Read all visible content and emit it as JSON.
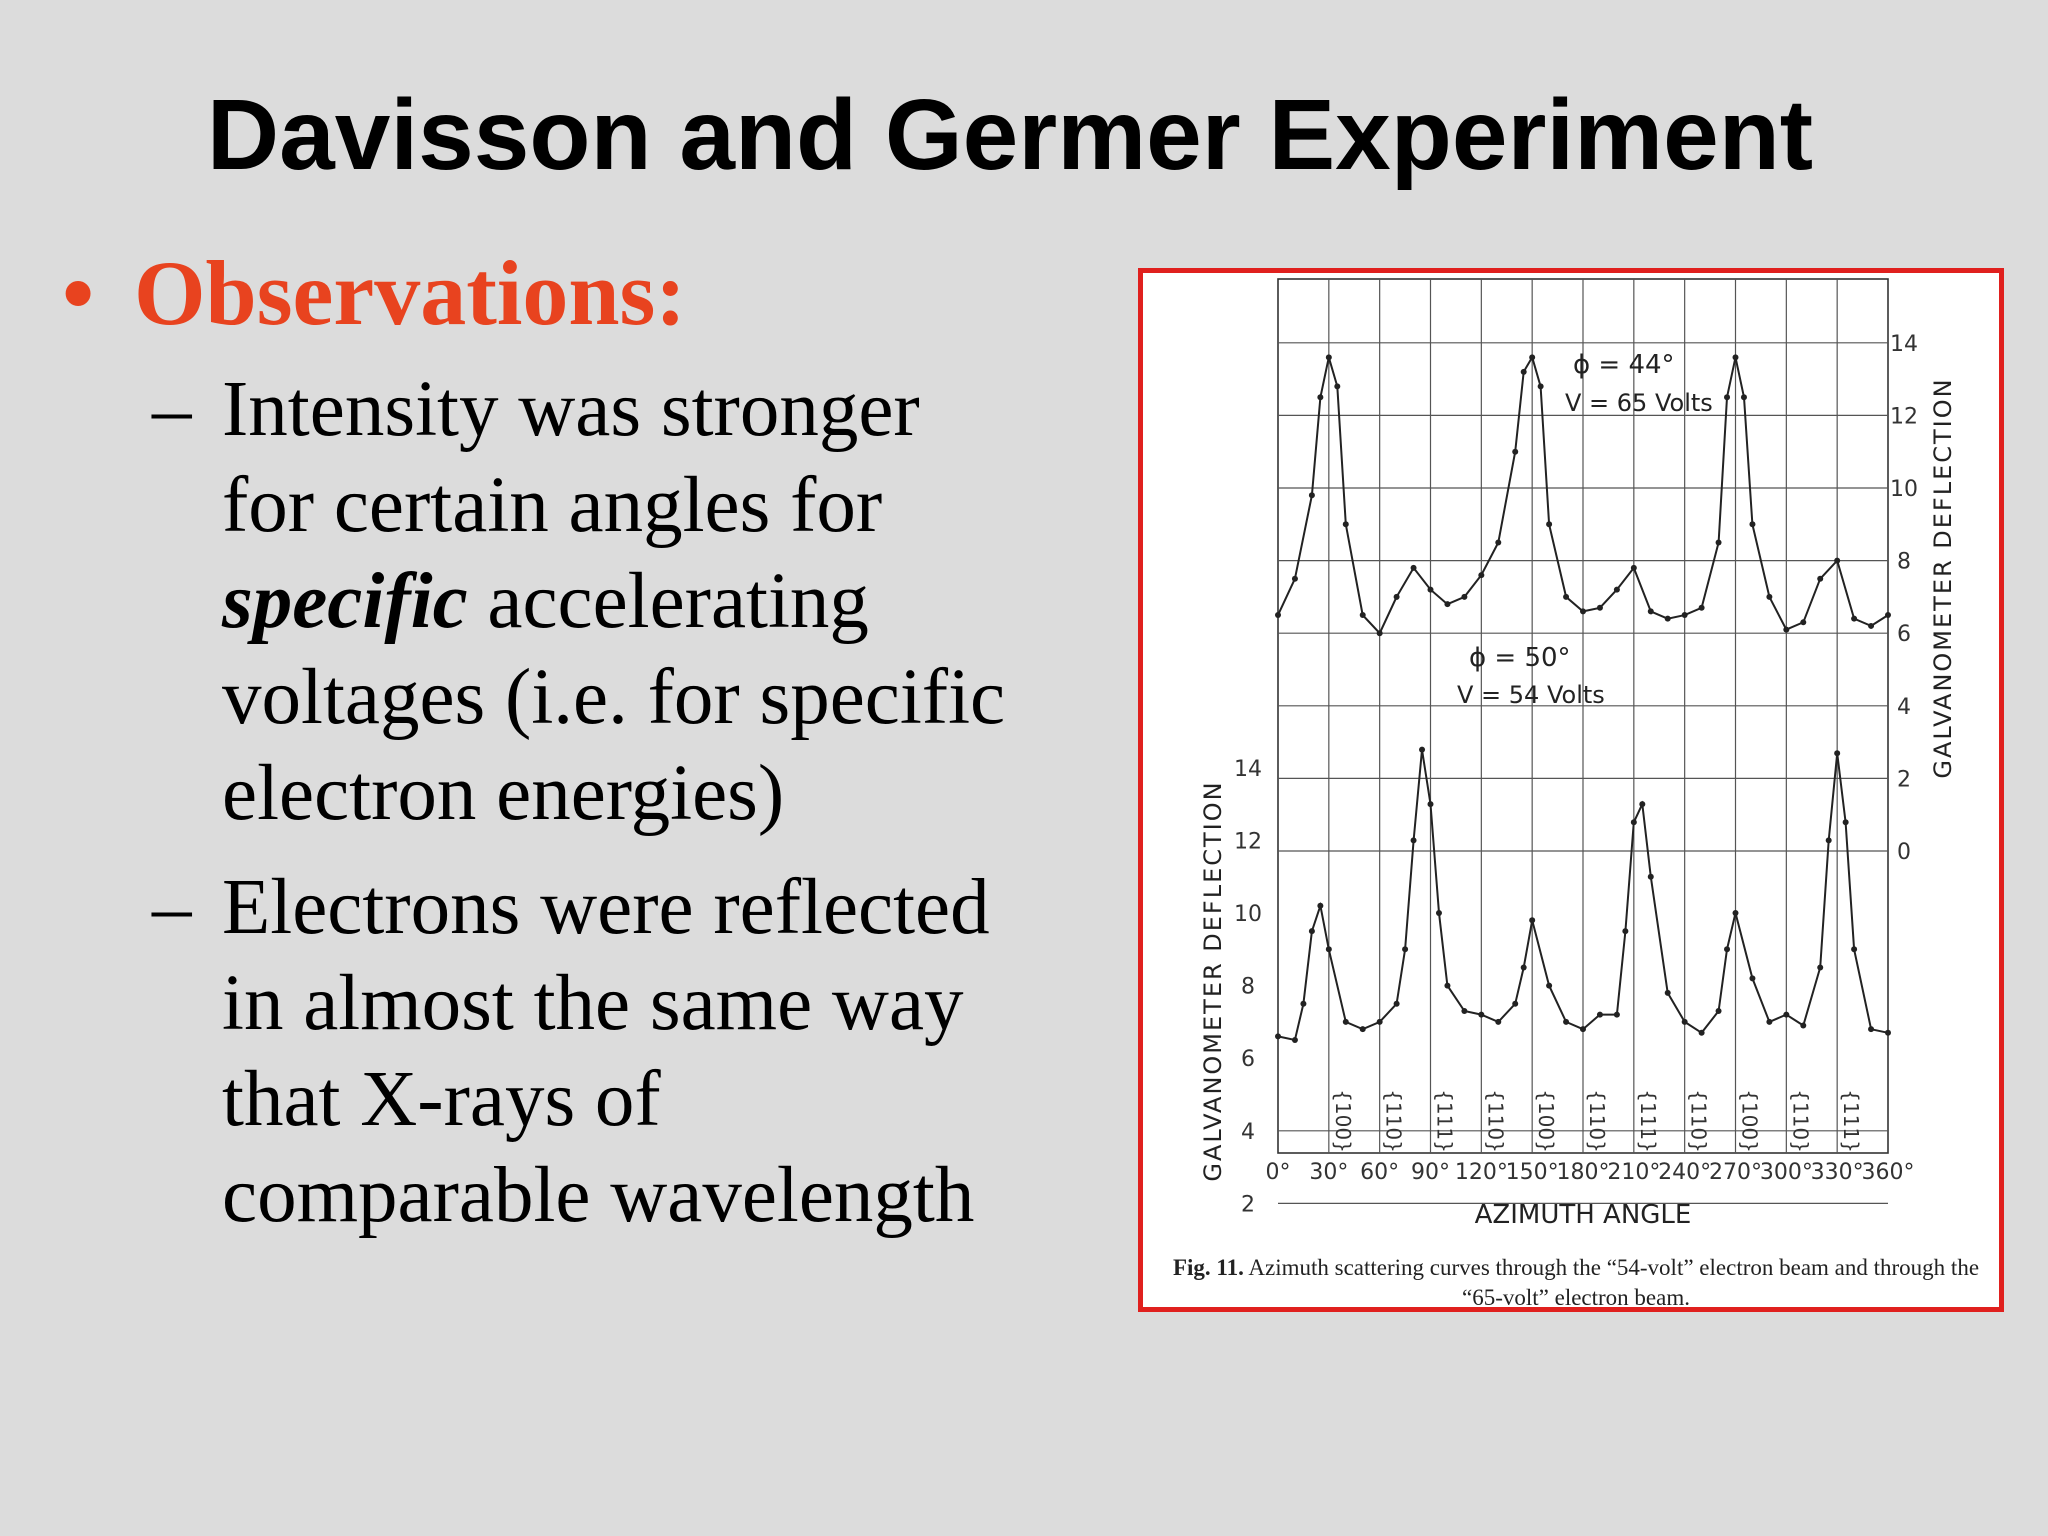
{
  "slide": {
    "title": "Davisson and Germer Experiment",
    "bullet": "Observations:",
    "sub1": {
      "dash": "–",
      "lines": [
        "Intensity was stronger",
        "for certain angles for"
      ],
      "line3_emph": "specific",
      "line3_rest": " accelerating",
      "line4": "voltages (i.e. for specific",
      "line5": "electron energies)"
    },
    "sub2": {
      "dash": "–",
      "lines": [
        "Electrons were reflected",
        "in almost the same way",
        "that X-rays of",
        "comparable wavelength"
      ]
    }
  },
  "figure": {
    "caption_number": "Fig. 11.",
    "caption_text": "Azimuth scattering curves through the “54-volt” electron beam and through the “65-volt” electron beam.",
    "x_label": "AZIMUTH ANGLE",
    "y_label_left": "GALVANOMETER DEFLECTION",
    "y_label_right": "GALVANOMETER DEFLECTION",
    "x_ticks": [
      "0°",
      "30°",
      "60°",
      "90°",
      "120°",
      "150°",
      "180°",
      "210°",
      "240°",
      "270°",
      "300°",
      "330°",
      "360°"
    ],
    "left_ticks": [
      "2",
      "4",
      "6",
      "8",
      "10",
      "12",
      "14"
    ],
    "right_ticks": [
      "0",
      "2",
      "4",
      "6",
      "8",
      "10",
      "12",
      "14"
    ],
    "plane_labels": [
      "{100}",
      "{110}",
      "{111}",
      "{110}",
      "{100}",
      "{110}",
      "{111}",
      "{110}",
      "{100}",
      "{110}",
      "{111}"
    ],
    "upper_label_phi": "ϕ = 44°",
    "upper_label_v": "V = 65 Volts",
    "lower_label_phi": "ϕ = 50°",
    "lower_label_v": "V = 54 Volts"
  },
  "chart_data": {
    "type": "line",
    "xlabel": "AZIMUTH ANGLE",
    "ylabel": "GALVANOMETER DEFLECTION",
    "xlim": [
      0,
      360
    ],
    "grid": true,
    "series": [
      {
        "name": "ϕ = 44° V = 65 Volts",
        "axis": "right",
        "ylim": [
          0,
          14
        ],
        "x": [
          0,
          10,
          20,
          25,
          30,
          35,
          40,
          50,
          60,
          70,
          80,
          90,
          100,
          110,
          120,
          130,
          140,
          145,
          150,
          155,
          160,
          170,
          180,
          190,
          200,
          210,
          220,
          230,
          240,
          250,
          260,
          265,
          270,
          275,
          280,
          290,
          300,
          310,
          320,
          330,
          340,
          350,
          360
        ],
        "values": [
          6.5,
          7.5,
          9.8,
          12.5,
          13.6,
          12.8,
          9.0,
          6.5,
          6.0,
          7.0,
          7.8,
          7.2,
          6.8,
          7.0,
          7.6,
          8.5,
          11.0,
          13.2,
          13.6,
          12.8,
          9.0,
          7.0,
          6.6,
          6.7,
          7.2,
          7.8,
          6.6,
          6.4,
          6.5,
          6.7,
          8.5,
          12.5,
          13.6,
          12.5,
          9.0,
          7.0,
          6.1,
          6.3,
          7.5,
          8.0,
          6.4,
          6.2,
          6.5
        ]
      },
      {
        "name": "ϕ = 50° V = 54 Volts",
        "axis": "left",
        "ylim": [
          0,
          14
        ],
        "x": [
          0,
          10,
          15,
          20,
          25,
          30,
          40,
          50,
          60,
          70,
          75,
          80,
          85,
          90,
          95,
          100,
          110,
          120,
          130,
          140,
          145,
          150,
          160,
          170,
          180,
          190,
          200,
          205,
          210,
          215,
          220,
          230,
          240,
          250,
          260,
          265,
          270,
          280,
          290,
          300,
          310,
          320,
          325,
          330,
          335,
          340,
          350,
          360
        ],
        "values": [
          6.6,
          6.5,
          7.5,
          9.5,
          10.2,
          9.0,
          7.0,
          6.8,
          7.0,
          7.5,
          9.0,
          12.0,
          14.5,
          13.0,
          10.0,
          8.0,
          7.3,
          7.2,
          7.0,
          7.5,
          8.5,
          9.8,
          8.0,
          7.0,
          6.8,
          7.2,
          7.2,
          9.5,
          12.5,
          13.0,
          11.0,
          7.8,
          7.0,
          6.7,
          7.3,
          9.0,
          10.0,
          8.2,
          7.0,
          7.2,
          6.9,
          8.5,
          12.0,
          14.4,
          12.5,
          9.0,
          6.8,
          6.7
        ]
      }
    ]
  }
}
